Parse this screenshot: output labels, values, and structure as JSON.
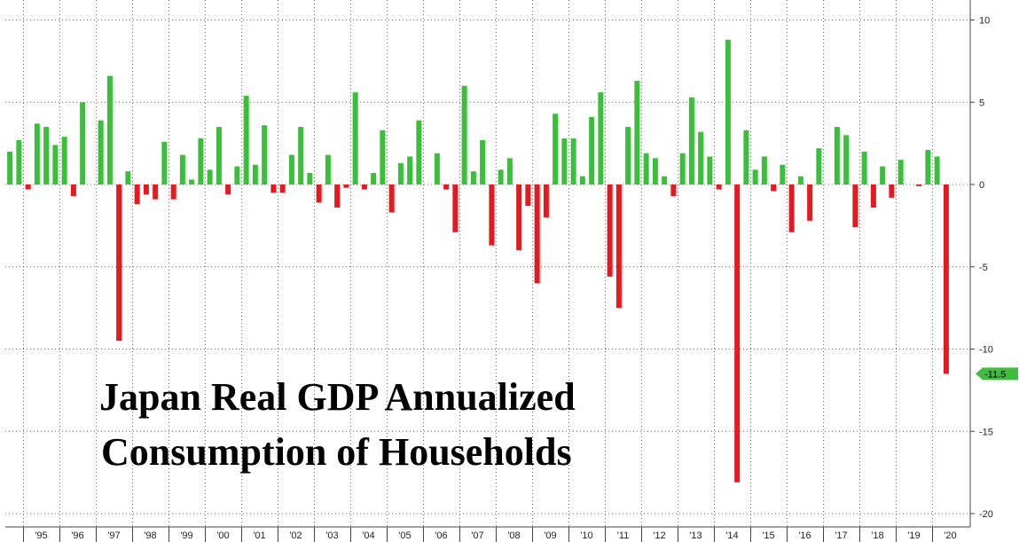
{
  "chart_data": {
    "type": "bar",
    "title_lines": [
      "Japan Real GDP Annualized",
      "Consumption of Households"
    ],
    "xlabel": "",
    "ylabel": "",
    "ylim": [
      -20,
      11
    ],
    "yticks": [
      10,
      5,
      0,
      -5,
      -10,
      -15,
      -20
    ],
    "ytick_labels": [
      "10",
      "5",
      "0",
      "-5",
      "-10",
      "-15",
      "-20"
    ],
    "year_labels": [
      "'95",
      "'96",
      "'97",
      "'98",
      "'99",
      "'00",
      "'01",
      "'02",
      "'03",
      "'04",
      "'05",
      "'06",
      "'07",
      "'08",
      "'09",
      "'10",
      "'11",
      "'12",
      "'13",
      "'14",
      "'15",
      "'16",
      "'17",
      "'18",
      "'19",
      "'20"
    ],
    "first_year": 1994,
    "first_quarter": 3,
    "series": [
      {
        "values": [
          2.0,
          2.7,
          -0.3,
          3.7,
          3.5,
          2.4,
          2.9,
          -0.7,
          5.0,
          0.0,
          3.9,
          6.6,
          -9.5,
          0.8,
          -1.2,
          -0.6,
          -0.9,
          2.6,
          -0.9,
          1.8,
          0.3,
          2.8,
          0.9,
          3.5,
          -0.6,
          1.1,
          5.4,
          1.2,
          3.6,
          -0.5,
          -0.5,
          1.8,
          3.5,
          0.7,
          -1.1,
          1.8,
          -1.4,
          -0.2,
          5.6,
          -0.3,
          0.7,
          3.3,
          -1.7,
          1.3,
          1.7,
          3.9,
          0.0,
          1.9,
          -0.3,
          -2.9,
          6.0,
          0.8,
          2.7,
          -3.7,
          0.9,
          1.6,
          -4.0,
          -1.3,
          -6.0,
          -2.0,
          4.3,
          2.8,
          2.8,
          0.5,
          4.1,
          5.6,
          -5.6,
          -7.5,
          3.5,
          6.3,
          1.9,
          1.6,
          0.5,
          -0.7,
          1.9,
          5.3,
          3.2,
          1.7,
          -0.3,
          8.8,
          -18.1,
          3.3,
          0.9,
          1.7,
          -0.4,
          1.2,
          -2.9,
          0.5,
          -2.2,
          2.2,
          0.0,
          3.5,
          3.0,
          -2.6,
          2.0,
          -1.4,
          1.1,
          -0.8,
          1.5,
          0.0,
          -0.1,
          2.1,
          1.7,
          -11.5
        ]
      }
    ],
    "last_value_label": "-11.5",
    "colors": {
      "positive": "#38c038",
      "negative": "#e8191e",
      "last_marker": "#3dbf3d",
      "grid": "#666666",
      "axis": "#444444"
    },
    "grid": true
  }
}
